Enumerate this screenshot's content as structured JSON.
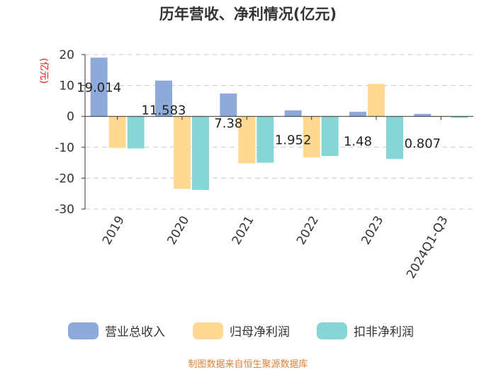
{
  "chart_data": {
    "type": "bar",
    "title": "历年营收、净利情况(亿元)",
    "ylabel": "(亿元)",
    "xlabel": "",
    "categories": [
      "2019",
      "2020",
      "2021",
      "2022",
      "2023",
      "2024Q1-Q3"
    ],
    "series": [
      {
        "name": "营业总收入",
        "color": "#8eaadb",
        "values": [
          19.014,
          11.583,
          7.38,
          1.952,
          1.48,
          0.807
        ]
      },
      {
        "name": "归母净利润",
        "color": "#ffd891",
        "values": [
          -10.2,
          -23.5,
          -15.2,
          -13.3,
          10.5,
          -0.2
        ]
      },
      {
        "name": "扣非净利润",
        "color": "#86d6d6",
        "values": [
          -10.4,
          -23.8,
          -15.0,
          -12.8,
          -13.8,
          -0.5
        ]
      }
    ],
    "data_labels": [
      "19.014",
      "11.583",
      "7.38",
      "1.952",
      "1.48",
      "0.807"
    ],
    "yticks": [
      20,
      10,
      0,
      -10,
      -20,
      -30
    ],
    "ylim": [
      -30,
      20
    ],
    "grid": true,
    "legend_position": "bottom"
  },
  "source": "制图数据来自恒生聚源数据库"
}
